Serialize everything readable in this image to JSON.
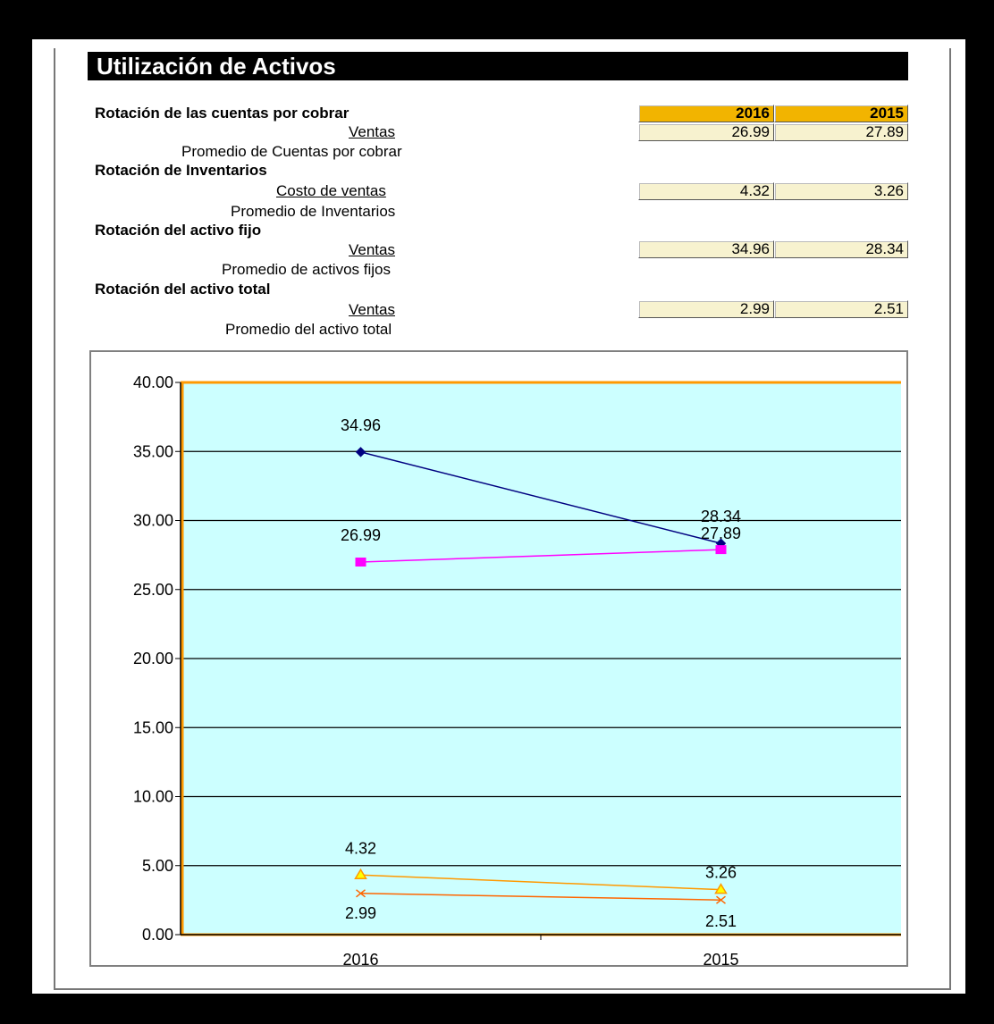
{
  "title": "Utilización de Activos",
  "years": [
    "2016",
    "2015"
  ],
  "ratios": [
    {
      "name": "Rotación de las cuentas por cobrar",
      "numerator": "Ventas",
      "denominator": "Promedio de Cuentas por cobrar",
      "v2016": "26.99",
      "v2015": "27.89"
    },
    {
      "name": "Rotación de Inventarios",
      "numerator": "Costo de ventas",
      "denominator": "Promedio de Inventarios",
      "v2016": "4.32",
      "v2015": "3.26"
    },
    {
      "name": "Rotación del activo fijo",
      "numerator": "Ventas",
      "denominator": "Promedio de activos fijos",
      "v2016": "34.96",
      "v2015": "28.34"
    },
    {
      "name": "Rotación del activo total",
      "numerator": "Ventas",
      "denominator": "Promedio del activo total",
      "v2016": "2.99",
      "v2015": "2.51"
    }
  ],
  "chart_data": {
    "type": "line",
    "title": "",
    "xlabel": "",
    "ylabel": "",
    "categories": [
      "2016",
      "2015"
    ],
    "ylim": [
      0,
      40
    ],
    "yticks": [
      "0.00",
      "5.00",
      "10.00",
      "15.00",
      "20.00",
      "25.00",
      "30.00",
      "35.00",
      "40.00"
    ],
    "grid": true,
    "legend": "none",
    "plot_background": "#ccffff",
    "series": [
      {
        "values": [
          34.96,
          28.34
        ],
        "labels": [
          "34.96",
          "28.34"
        ],
        "color": "#000080",
        "marker": "diamond"
      },
      {
        "values": [
          26.99,
          27.89
        ],
        "labels": [
          "26.99",
          "27.89"
        ],
        "color": "#ff00ff",
        "marker": "square"
      },
      {
        "values": [
          4.32,
          3.26
        ],
        "labels": [
          "4.32",
          "3.26"
        ],
        "color": "#ff9900",
        "marker": "triangle"
      },
      {
        "values": [
          2.99,
          2.51
        ],
        "labels": [
          "2.99",
          "2.51"
        ],
        "color": "#ff6600",
        "marker": "x"
      }
    ]
  }
}
